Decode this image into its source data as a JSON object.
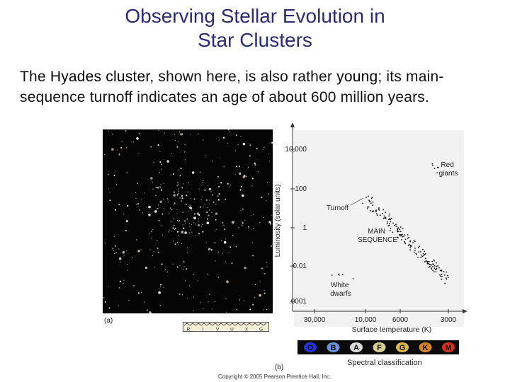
{
  "slide": {
    "title_line1": "Observing Stellar Evolution in",
    "title_line2": "Star Clusters",
    "body_pre": "The ",
    "body_hl1": "Hyades cluster",
    "body_mid": ", shown here, is also rather ",
    "body_hl2": "young",
    "body_post": "; its main-sequence turnoff indicates an age of about 600 million years."
  },
  "figure": {
    "label_a": "(a)",
    "label_b": "(b)",
    "filters": [
      "R",
      "I",
      "V",
      "U",
      "X",
      "G"
    ],
    "copyright": "Copyright © 2005 Pearson Prentice Hall, Inc."
  },
  "chart_data": {
    "type": "scatter",
    "xlabel": "Surface temperature (K)",
    "ylabel": "Luminosity (solar units)",
    "x_ticks": [
      "30,000",
      "10,000",
      "6000",
      "3000"
    ],
    "y_ticks": [
      "10,000",
      "100",
      "1",
      "0.01",
      ".0001"
    ],
    "annotations": {
      "red_giants": "Red giants",
      "turnoff": "Turnoff",
      "main_sequence": "MAIN SEQUENCE",
      "white_dwarfs": "White dwarfs"
    },
    "spectral_classes": [
      "O",
      "B",
      "A",
      "F",
      "G",
      "K",
      "M"
    ],
    "spectral_label": "Spectral classification",
    "spectral_colors": [
      "#2a3cff",
      "#7aa8ff",
      "#ffffff",
      "#fff3b0",
      "#ffd84a",
      "#ff9a2a",
      "#ff3a1a"
    ]
  }
}
